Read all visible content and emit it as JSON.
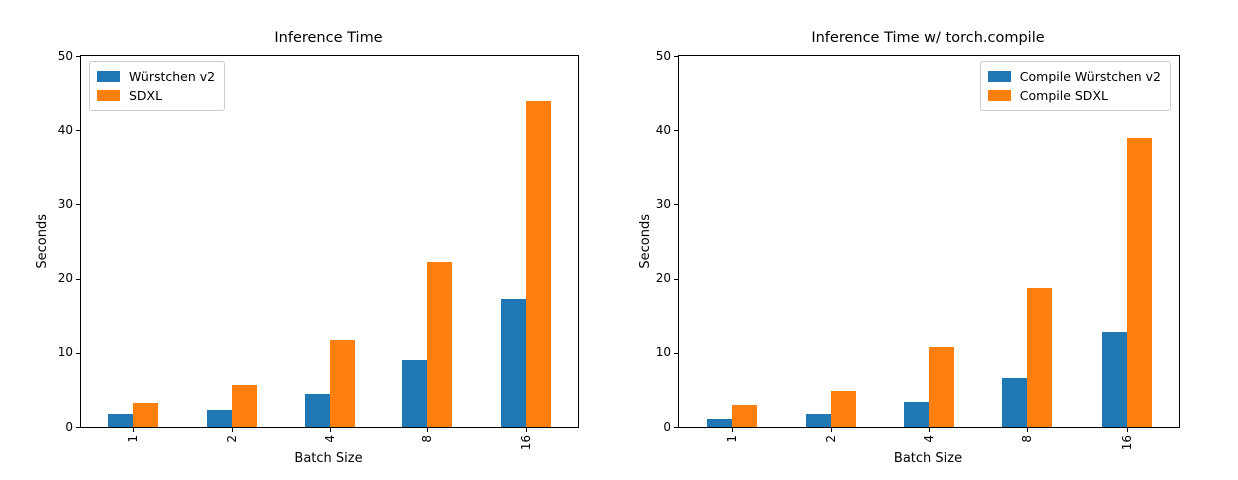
{
  "chart_data": [
    {
      "type": "bar",
      "title": "Inference Time",
      "xlabel": "Batch Size",
      "ylabel": "Seconds",
      "categories": [
        "1",
        "2",
        "4",
        "8",
        "16"
      ],
      "series": [
        {
          "name": "Würstchen v2",
          "color": "#1f77b4",
          "values": [
            1.8,
            2.3,
            4.4,
            9.0,
            17.3
          ]
        },
        {
          "name": "SDXL",
          "color": "#ff7f0e",
          "values": [
            3.2,
            5.7,
            11.7,
            22.3,
            44.0
          ]
        }
      ],
      "ylim": [
        0,
        50
      ],
      "yticks": [
        0,
        10,
        20,
        30,
        40,
        50
      ],
      "grid": false,
      "legend_position": "upper-left"
    },
    {
      "type": "bar",
      "title": "Inference Time w/ torch.compile",
      "xlabel": "Batch Size",
      "ylabel": "Seconds",
      "categories": [
        "1",
        "2",
        "4",
        "8",
        "16"
      ],
      "series": [
        {
          "name": "Compile Würstchen v2",
          "color": "#1f77b4",
          "values": [
            1.1,
            1.8,
            3.4,
            6.6,
            12.8
          ]
        },
        {
          "name": "Compile SDXL",
          "color": "#ff7f0e",
          "values": [
            2.9,
            4.9,
            10.8,
            18.8,
            39.0
          ]
        }
      ],
      "ylim": [
        0,
        50
      ],
      "yticks": [
        0,
        10,
        20,
        30,
        40,
        50
      ],
      "grid": false,
      "legend_position": "upper-right"
    }
  ]
}
